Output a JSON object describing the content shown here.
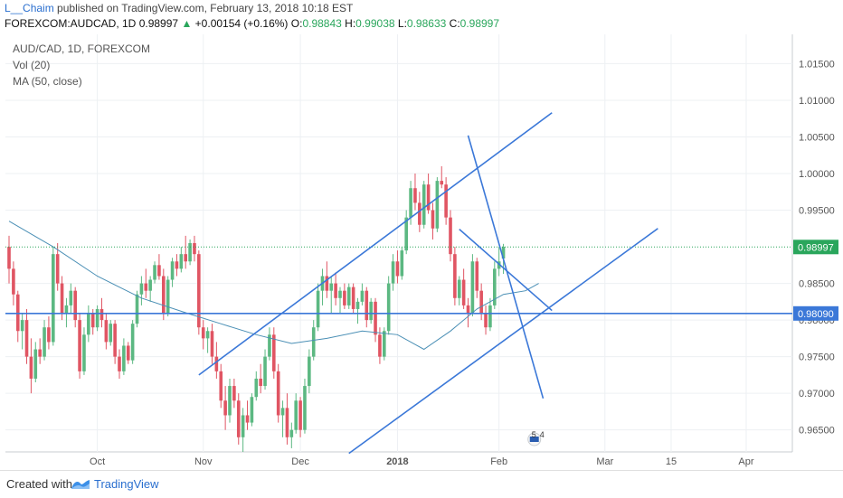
{
  "header": {
    "author": "L__Chaim",
    "published_text": "published on TradingView.com, February 13, 2018 10:18 EST",
    "symbol": "FOREXCOM:AUDCAD, 1D",
    "last": "0.98997",
    "change": "+0.00154 (+0.16%)",
    "open_label": "O:",
    "open": "0.98843",
    "high_label": "H:",
    "high": "0.99038",
    "low_label": "L:",
    "low": "0.98633",
    "close_label": "C:",
    "close": "0.98997"
  },
  "legend": {
    "title": "AUD/CAD, 1D, FOREXCOM",
    "volume": "Vol (20)",
    "ma": "MA (50, close)"
  },
  "footer": {
    "created_with": "Created with",
    "brand": "TradingView"
  },
  "colors": {
    "up": "#5cb882",
    "down": "#e05563",
    "trendline": "#3b78d8",
    "ma": "#4a8fb5",
    "price_line": "#2aa65c",
    "grid": "#edf0f3"
  },
  "chart_data": {
    "type": "candlestick",
    "symbol": "AUD/CAD",
    "ylim": [
      0.962,
      1.019
    ],
    "y_ticks": [
      "1.01500",
      "1.01000",
      "1.00500",
      "1.00000",
      "0.99500",
      "0.98500",
      "0.98000",
      "0.97500",
      "0.97000",
      "0.96500"
    ],
    "y_tick_values": [
      1.015,
      1.01,
      1.005,
      1.0,
      0.995,
      0.985,
      0.98,
      0.975,
      0.97,
      0.965
    ],
    "x_ticks": [
      {
        "label": "Oct",
        "index": 20
      },
      {
        "label": "Nov",
        "index": 44
      },
      {
        "label": "Dec",
        "index": 66
      },
      {
        "label": "2018",
        "index": 88
      },
      {
        "label": "Feb",
        "index": 111
      },
      {
        "label": "Mar",
        "index": 135
      },
      {
        "label": "15",
        "index": 150
      },
      {
        "label": "Apr",
        "index": 167
      }
    ],
    "price_label": "0.98997",
    "price_value": 0.98997,
    "hline_label": "0.98090",
    "hline_value": 0.9809,
    "event_labels": [
      "5",
      "4"
    ],
    "trendlines": [
      {
        "from": [
          43,
          0.9725
        ],
        "to": [
          123,
          1.0083
        ]
      },
      {
        "from": [
          77,
          0.9618
        ],
        "to": [
          147,
          0.9925
        ]
      },
      {
        "from": [
          104,
          1.0052
        ],
        "to": [
          121,
          0.9693
        ]
      },
      {
        "from": [
          102,
          0.9924
        ],
        "to": [
          123,
          0.9813
        ]
      }
    ],
    "ma_points": [
      [
        0,
        0.9935
      ],
      [
        10,
        0.99
      ],
      [
        20,
        0.986
      ],
      [
        30,
        0.983
      ],
      [
        40,
        0.981
      ],
      [
        48,
        0.9795
      ],
      [
        56,
        0.978
      ],
      [
        64,
        0.9768
      ],
      [
        72,
        0.9775
      ],
      [
        80,
        0.9785
      ],
      [
        88,
        0.978
      ],
      [
        94,
        0.976
      ],
      [
        100,
        0.9785
      ],
      [
        106,
        0.9815
      ],
      [
        112,
        0.9835
      ],
      [
        117,
        0.984
      ],
      [
        120,
        0.985
      ]
    ],
    "candles": [
      [
        0.99,
        0.9915,
        0.985,
        0.987
      ],
      [
        0.987,
        0.988,
        0.982,
        0.9835
      ],
      [
        0.9835,
        0.984,
        0.977,
        0.9785
      ],
      [
        0.9785,
        0.981,
        0.976,
        0.98
      ],
      [
        0.98,
        0.9815,
        0.974,
        0.975
      ],
      [
        0.975,
        0.9775,
        0.97,
        0.972
      ],
      [
        0.972,
        0.977,
        0.9715,
        0.976
      ],
      [
        0.976,
        0.9775,
        0.974,
        0.975
      ],
      [
        0.975,
        0.98,
        0.9745,
        0.979
      ],
      [
        0.979,
        0.9805,
        0.976,
        0.977
      ],
      [
        0.977,
        0.99,
        0.9765,
        0.989
      ],
      [
        0.989,
        0.9905,
        0.984,
        0.985
      ],
      [
        0.985,
        0.986,
        0.98,
        0.981
      ],
      [
        0.981,
        0.983,
        0.979,
        0.982
      ],
      [
        0.982,
        0.985,
        0.981,
        0.984
      ],
      [
        0.984,
        0.9845,
        0.979,
        0.98
      ],
      [
        0.98,
        0.981,
        0.972,
        0.973
      ],
      [
        0.973,
        0.979,
        0.9725,
        0.978
      ],
      [
        0.978,
        0.982,
        0.977,
        0.981
      ],
      [
        0.981,
        0.9815,
        0.978,
        0.979
      ],
      [
        0.979,
        0.982,
        0.9785,
        0.9815
      ],
      [
        0.9815,
        0.983,
        0.979,
        0.98
      ],
      [
        0.98,
        0.981,
        0.976,
        0.977
      ],
      [
        0.977,
        0.98,
        0.9765,
        0.9795
      ],
      [
        0.9795,
        0.98,
        0.974,
        0.975
      ],
      [
        0.975,
        0.976,
        0.972,
        0.973
      ],
      [
        0.973,
        0.9775,
        0.9725,
        0.9765
      ],
      [
        0.9765,
        0.977,
        0.974,
        0.9745
      ],
      [
        0.9745,
        0.98,
        0.974,
        0.9795
      ],
      [
        0.9795,
        0.984,
        0.979,
        0.9835
      ],
      [
        0.9835,
        0.986,
        0.982,
        0.985
      ],
      [
        0.985,
        0.987,
        0.983,
        0.984
      ],
      [
        0.984,
        0.986,
        0.9825,
        0.9855
      ],
      [
        0.9855,
        0.988,
        0.985,
        0.9875
      ],
      [
        0.9875,
        0.989,
        0.9855,
        0.986
      ],
      [
        0.986,
        0.987,
        0.98,
        0.981
      ],
      [
        0.981,
        0.986,
        0.9805,
        0.9855
      ],
      [
        0.9855,
        0.9885,
        0.9845,
        0.988
      ],
      [
        0.988,
        0.989,
        0.986,
        0.987
      ],
      [
        0.987,
        0.99,
        0.9865,
        0.989
      ],
      [
        0.989,
        0.9915,
        0.987,
        0.988
      ],
      [
        0.988,
        0.991,
        0.9875,
        0.9905
      ],
      [
        0.9905,
        0.9915,
        0.988,
        0.989
      ],
      [
        0.989,
        0.9895,
        0.978,
        0.979
      ],
      [
        0.979,
        0.98,
        0.976,
        0.9775
      ],
      [
        0.9775,
        0.979,
        0.9755,
        0.9785
      ],
      [
        0.9785,
        0.9795,
        0.974,
        0.975
      ],
      [
        0.975,
        0.977,
        0.972,
        0.973
      ],
      [
        0.973,
        0.974,
        0.968,
        0.969
      ],
      [
        0.969,
        0.971,
        0.965,
        0.967
      ],
      [
        0.967,
        0.972,
        0.966,
        0.971
      ],
      [
        0.971,
        0.972,
        0.968,
        0.969
      ],
      [
        0.969,
        0.97,
        0.963,
        0.964
      ],
      [
        0.964,
        0.968,
        0.962,
        0.967
      ],
      [
        0.967,
        0.969,
        0.965,
        0.966
      ],
      [
        0.966,
        0.97,
        0.9655,
        0.9695
      ],
      [
        0.9695,
        0.973,
        0.969,
        0.972
      ],
      [
        0.972,
        0.974,
        0.97,
        0.971
      ],
      [
        0.971,
        0.976,
        0.9705,
        0.975
      ],
      [
        0.975,
        0.979,
        0.9745,
        0.978
      ],
      [
        0.978,
        0.979,
        0.972,
        0.973
      ],
      [
        0.973,
        0.974,
        0.966,
        0.967
      ],
      [
        0.967,
        0.969,
        0.964,
        0.968
      ],
      [
        0.968,
        0.97,
        0.963,
        0.964
      ],
      [
        0.964,
        0.966,
        0.9625,
        0.965
      ],
      [
        0.965,
        0.97,
        0.9645,
        0.969
      ],
      [
        0.969,
        0.9695,
        0.964,
        0.965
      ],
      [
        0.965,
        0.972,
        0.9645,
        0.971
      ],
      [
        0.971,
        0.976,
        0.97,
        0.975
      ],
      [
        0.975,
        0.98,
        0.9745,
        0.979
      ],
      [
        0.979,
        0.985,
        0.9785,
        0.984
      ],
      [
        0.984,
        0.987,
        0.982,
        0.986
      ],
      [
        0.986,
        0.988,
        0.983,
        0.984
      ],
      [
        0.984,
        0.986,
        0.981,
        0.985
      ],
      [
        0.985,
        0.9865,
        0.982,
        0.983
      ],
      [
        0.983,
        0.9845,
        0.981,
        0.984
      ],
      [
        0.984,
        0.985,
        0.9815,
        0.982
      ],
      [
        0.982,
        0.985,
        0.9815,
        0.9845
      ],
      [
        0.9845,
        0.985,
        0.981,
        0.9815
      ],
      [
        0.9815,
        0.983,
        0.9795,
        0.9825
      ],
      [
        0.9825,
        0.985,
        0.982,
        0.984
      ],
      [
        0.984,
        0.9845,
        0.979,
        0.98
      ],
      [
        0.98,
        0.983,
        0.9795,
        0.9825
      ],
      [
        0.9825,
        0.983,
        0.977,
        0.978
      ],
      [
        0.978,
        0.979,
        0.974,
        0.975
      ],
      [
        0.975,
        0.979,
        0.9745,
        0.9785
      ],
      [
        0.9785,
        0.986,
        0.978,
        0.985
      ],
      [
        0.985,
        0.989,
        0.984,
        0.988
      ],
      [
        0.988,
        0.9895,
        0.985,
        0.986
      ],
      [
        0.986,
        0.99,
        0.9855,
        0.9895
      ],
      [
        0.9895,
        0.995,
        0.989,
        0.994
      ],
      [
        0.994,
        0.999,
        0.993,
        0.998
      ],
      [
        0.998,
        1.0,
        0.995,
        0.996
      ],
      [
        0.996,
        0.9975,
        0.992,
        0.993
      ],
      [
        0.993,
        0.999,
        0.9925,
        0.9985
      ],
      [
        0.9985,
        1.0,
        0.9945,
        0.995
      ],
      [
        0.995,
        0.996,
        0.991,
        0.9925
      ],
      [
        0.9925,
        0.9995,
        0.992,
        0.999
      ],
      [
        0.999,
        1.001,
        0.998,
        0.9985
      ],
      [
        0.9985,
        0.9995,
        0.993,
        0.994
      ],
      [
        0.994,
        0.995,
        0.988,
        0.989
      ],
      [
        0.989,
        0.99,
        0.982,
        0.983
      ],
      [
        0.983,
        0.986,
        0.982,
        0.9855
      ],
      [
        0.9855,
        0.987,
        0.9815,
        0.982
      ],
      [
        0.982,
        0.983,
        0.979,
        0.981
      ],
      [
        0.981,
        0.989,
        0.9805,
        0.988
      ],
      [
        0.988,
        0.9885,
        0.983,
        0.984
      ],
      [
        0.984,
        0.985,
        0.98,
        0.981
      ],
      [
        0.981,
        0.982,
        0.978,
        0.979
      ],
      [
        0.979,
        0.983,
        0.9785,
        0.982
      ],
      [
        0.982,
        0.988,
        0.9815,
        0.987
      ],
      [
        0.987,
        0.99,
        0.986,
        0.988
      ],
      [
        0.9884,
        0.9904,
        0.9863,
        0.99
      ]
    ]
  }
}
